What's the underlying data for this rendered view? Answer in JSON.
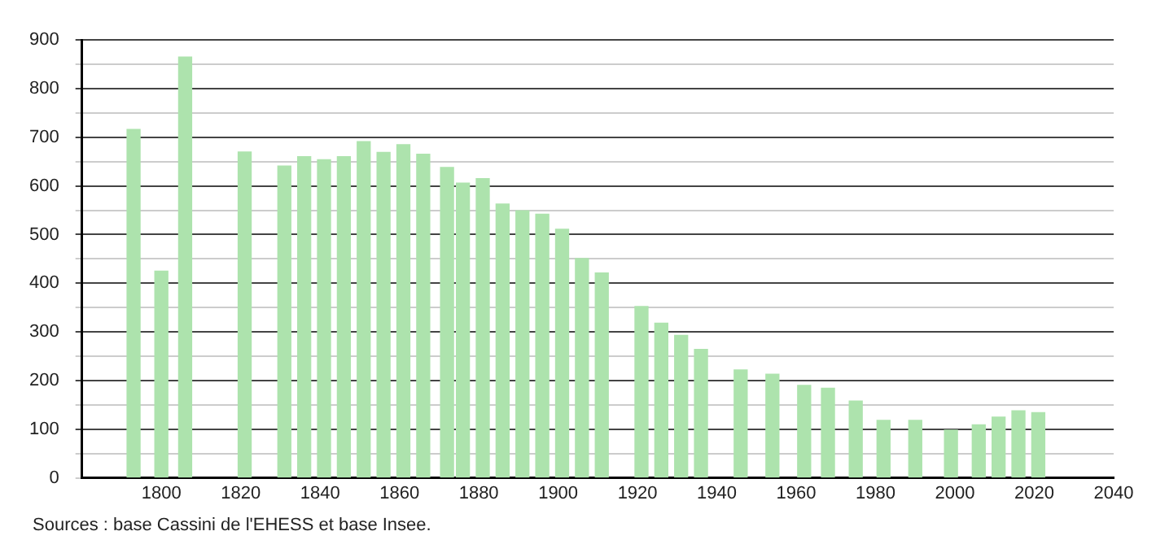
{
  "chart_data": {
    "type": "bar",
    "x": [
      1793,
      1800,
      1806,
      1821,
      1831,
      1836,
      1841,
      1846,
      1851,
      1856,
      1861,
      1866,
      1872,
      1876,
      1881,
      1886,
      1891,
      1896,
      1901,
      1906,
      1911,
      1921,
      1926,
      1931,
      1936,
      1946,
      1954,
      1962,
      1968,
      1975,
      1982,
      1990,
      1999,
      2006,
      2011,
      2016,
      2021
    ],
    "values": [
      716,
      425,
      865,
      670,
      641,
      660,
      654,
      660,
      691,
      669,
      685,
      665,
      638,
      606,
      615,
      563,
      549,
      542,
      511,
      451,
      421,
      352,
      318,
      293,
      264,
      222,
      213,
      190,
      184,
      158,
      118,
      118,
      98,
      109,
      125,
      138,
      134
    ],
    "color": "#ade3ad",
    "xlim": [
      1780,
      2040
    ],
    "xticks": [
      1800,
      1820,
      1840,
      1860,
      1880,
      1900,
      1920,
      1940,
      1960,
      1980,
      2000,
      2020,
      2040
    ],
    "ylim": [
      0,
      900
    ],
    "yticks": [
      0,
      {
        "value": 50,
        "label": null
      },
      100,
      {
        "value": 150,
        "label": null
      },
      200,
      {
        "value": 250,
        "label": null
      },
      300,
      {
        "value": 350,
        "label": null
      },
      400,
      {
        "value": 450,
        "label": null
      },
      500,
      {
        "value": 550,
        "label": null
      },
      600,
      {
        "value": 650,
        "label": null
      },
      700,
      {
        "value": 750,
        "label": null
      },
      800,
      {
        "value": 850,
        "label": null
      },
      900
    ],
    "grid": "y",
    "annotations": [
      "Sources : base Cassini de l'EHESS et base Insee."
    ]
  }
}
